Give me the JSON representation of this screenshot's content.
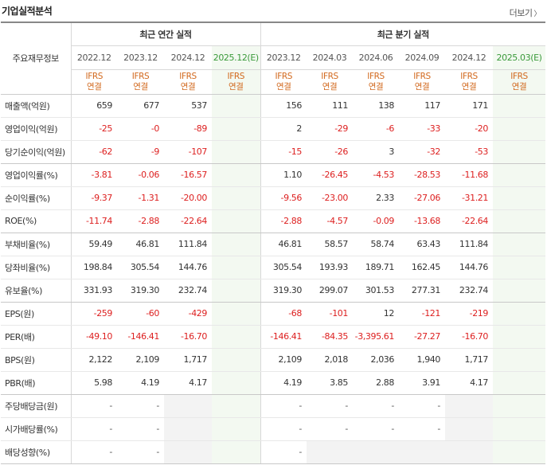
{
  "title": "기업실적분석",
  "more_label": "더보기",
  "label_header": "주요재무정보",
  "groups": {
    "annual": "최근 연간 실적",
    "quarter": "최근 분기 실적"
  },
  "periods": [
    {
      "label": "2022.12",
      "est": false
    },
    {
      "label": "2023.12",
      "est": false
    },
    {
      "label": "2024.12",
      "est": false
    },
    {
      "label": "2025.12(E)",
      "est": true
    },
    {
      "label": "2023.12",
      "est": false
    },
    {
      "label": "2024.03",
      "est": false
    },
    {
      "label": "2024.06",
      "est": false
    },
    {
      "label": "2024.09",
      "est": false
    },
    {
      "label": "2024.12",
      "est": false
    },
    {
      "label": "2025.03(E)",
      "est": true
    }
  ],
  "basis": {
    "line1": "IFRS",
    "line2": "연결"
  },
  "rows": [
    {
      "label": "매출액(억원)",
      "values": [
        "659",
        "677",
        "537",
        "",
        "156",
        "111",
        "138",
        "117",
        "171",
        ""
      ],
      "group_end": false
    },
    {
      "label": "영업이익(억원)",
      "values": [
        "-25",
        "-0",
        "-89",
        "",
        "2",
        "-29",
        "-6",
        "-33",
        "-20",
        ""
      ],
      "group_end": false
    },
    {
      "label": "당기순이익(억원)",
      "values": [
        "-62",
        "-9",
        "-107",
        "",
        "-15",
        "-26",
        "3",
        "-32",
        "-53",
        ""
      ],
      "group_end": true
    },
    {
      "label": "영업이익률(%)",
      "values": [
        "-3.81",
        "-0.06",
        "-16.57",
        "",
        "1.10",
        "-26.45",
        "-4.53",
        "-28.53",
        "-11.68",
        ""
      ],
      "group_end": false
    },
    {
      "label": "순이익률(%)",
      "values": [
        "-9.37",
        "-1.31",
        "-20.00",
        "",
        "-9.56",
        "-23.00",
        "2.33",
        "-27.06",
        "-31.21",
        ""
      ],
      "group_end": false
    },
    {
      "label": "ROE(%)",
      "values": [
        "-11.74",
        "-2.88",
        "-22.64",
        "",
        "-2.88",
        "-4.57",
        "-0.09",
        "-13.68",
        "-22.64",
        ""
      ],
      "group_end": true
    },
    {
      "label": "부채비율(%)",
      "values": [
        "59.49",
        "46.81",
        "111.84",
        "",
        "46.81",
        "58.57",
        "58.74",
        "63.43",
        "111.84",
        ""
      ],
      "group_end": false
    },
    {
      "label": "당좌비율(%)",
      "values": [
        "198.84",
        "305.54",
        "144.76",
        "",
        "305.54",
        "193.93",
        "189.71",
        "162.45",
        "144.76",
        ""
      ],
      "group_end": false
    },
    {
      "label": "유보율(%)",
      "values": [
        "331.93",
        "319.30",
        "232.74",
        "",
        "319.30",
        "299.07",
        "301.53",
        "277.31",
        "232.74",
        ""
      ],
      "group_end": true
    },
    {
      "label": "EPS(원)",
      "values": [
        "-259",
        "-60",
        "-429",
        "",
        "-68",
        "-101",
        "12",
        "-121",
        "-219",
        ""
      ],
      "group_end": false
    },
    {
      "label": "PER(배)",
      "values": [
        "-49.10",
        "-146.41",
        "-16.70",
        "",
        "-146.41",
        "-84.35",
        "-3,395.61",
        "-27.27",
        "-16.70",
        ""
      ],
      "group_end": false
    },
    {
      "label": "BPS(원)",
      "values": [
        "2,122",
        "2,109",
        "1,717",
        "",
        "2,109",
        "2,018",
        "2,036",
        "1,940",
        "1,717",
        ""
      ],
      "group_end": false
    },
    {
      "label": "PBR(배)",
      "values": [
        "5.98",
        "4.19",
        "4.17",
        "",
        "4.19",
        "3.85",
        "2.88",
        "3.91",
        "4.17",
        ""
      ],
      "group_end": true
    },
    {
      "label": "주당배당금(원)",
      "values": [
        "-",
        "-",
        "",
        "",
        "-",
        "-",
        "-",
        "-",
        "",
        ""
      ],
      "group_end": false
    },
    {
      "label": "시가배당률(%)",
      "values": [
        "-",
        "-",
        "",
        "",
        "-",
        "-",
        "-",
        "-",
        "",
        ""
      ],
      "group_end": false
    },
    {
      "label": "배당성향(%)",
      "values": [
        "-",
        "-",
        "",
        "",
        "-",
        "",
        "",
        "",
        "",
        ""
      ],
      "group_end": true
    }
  ],
  "empty_cells": [
    [
      13,
      2
    ],
    [
      14,
      2
    ],
    [
      15,
      2
    ],
    [
      13,
      8
    ],
    [
      14,
      8
    ],
    [
      15,
      5
    ],
    [
      15,
      6
    ],
    [
      15,
      7
    ],
    [
      15,
      8
    ]
  ],
  "colors": {
    "negative": "#dd1f1f",
    "basis": "#d2691e",
    "estimate": "#3a9a3a",
    "estimate_bg": "#f3f9f1"
  }
}
